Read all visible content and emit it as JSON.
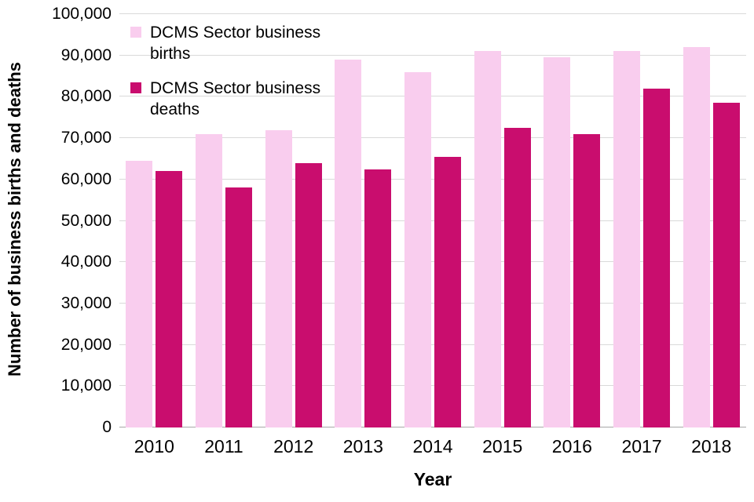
{
  "chart_data": {
    "type": "bar",
    "title": "",
    "xlabel": "Year",
    "ylabel": "Number of business births and deaths",
    "categories": [
      "2010",
      "2011",
      "2012",
      "2013",
      "2014",
      "2015",
      "2016",
      "2017",
      "2018"
    ],
    "series": [
      {
        "name": "DCMS Sector business births",
        "color": "#f9cdee",
        "values": [
          64500,
          71000,
          72000,
          89000,
          86000,
          91000,
          89500,
          91000,
          92000
        ]
      },
      {
        "name": "DCMS Sector business deaths",
        "color": "#c90d6e",
        "values": [
          62000,
          58000,
          64000,
          62500,
          65500,
          72500,
          71000,
          82000,
          78500
        ]
      }
    ],
    "ylim": [
      0,
      100000
    ],
    "ytick_step": 10000,
    "grid": true,
    "legend_position": "top-left-inside"
  }
}
